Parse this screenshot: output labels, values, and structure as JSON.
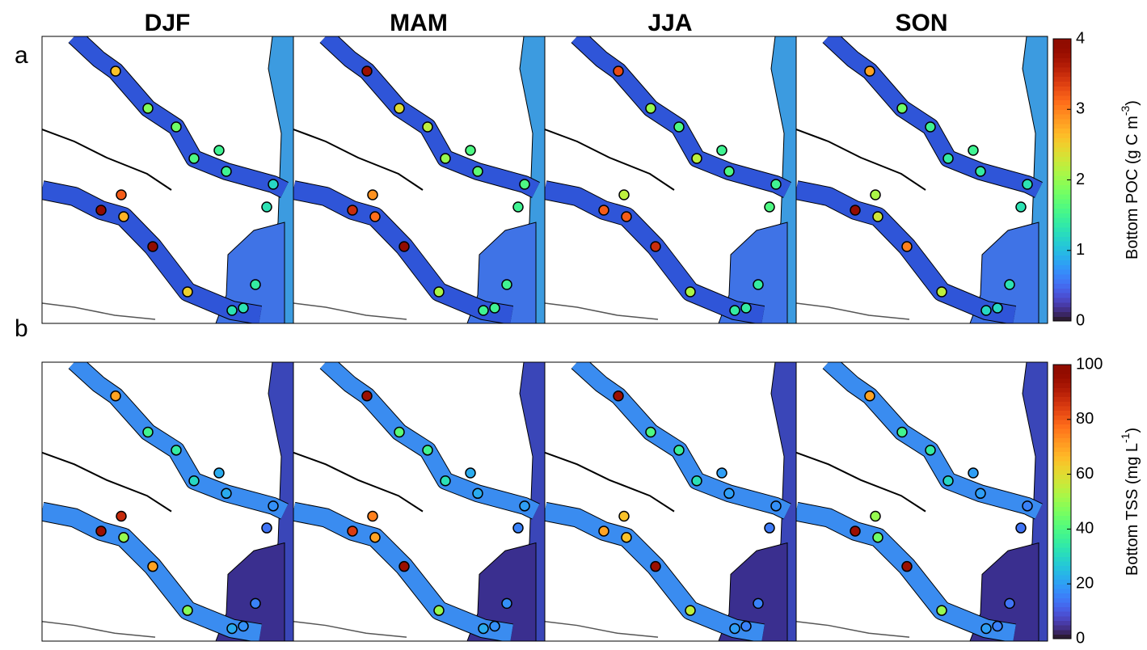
{
  "seasons": [
    "DJF",
    "MAM",
    "JJA",
    "SON"
  ],
  "panels": [
    {
      "label": "a",
      "colorbar": {
        "label": "Bottom POC (g C m",
        "superscript": "-3",
        "suffix": ")",
        "lim": [
          0,
          4
        ],
        "ticks": [
          0,
          1,
          2,
          3,
          4
        ]
      },
      "stations": [
        [
          2.6,
          1.9,
          1.8,
          1.6,
          1.5,
          1.5,
          1.2,
          1.3,
          3.2,
          3.9,
          2.7,
          3.9,
          2.5,
          1.4,
          1.3,
          1.3
        ],
        [
          3.8,
          2.4,
          2.2,
          2.0,
          1.6,
          1.7,
          1.6,
          1.5,
          2.9,
          3.5,
          3.1,
          3.9,
          2.1,
          1.5,
          1.5,
          1.5
        ],
        [
          3.3,
          2.0,
          1.6,
          2.2,
          1.5,
          1.6,
          1.5,
          1.6,
          2.2,
          3.2,
          3.2,
          3.5,
          2.1,
          1.4,
          1.4,
          1.4
        ],
        [
          2.8,
          1.8,
          1.5,
          1.4,
          1.5,
          1.4,
          1.3,
          1.3,
          2.1,
          3.9,
          2.3,
          3.0,
          2.2,
          1.3,
          1.2,
          1.2
        ]
      ]
    },
    {
      "label": "b",
      "colorbar": {
        "label": "Bottom TSS (mg L",
        "superscript": "-1",
        "suffix": ")",
        "lim": [
          0,
          100
        ],
        "ticks": [
          0,
          20,
          40,
          60,
          80,
          100
        ]
      },
      "stations": [
        [
          70,
          38,
          35,
          30,
          22,
          22,
          18,
          14,
          88,
          95,
          50,
          70,
          48,
          16,
          22,
          18
        ],
        [
          95,
          42,
          38,
          32,
          22,
          22,
          20,
          16,
          75,
          85,
          70,
          95,
          50,
          18,
          22,
          18
        ],
        [
          95,
          40,
          36,
          32,
          20,
          20,
          18,
          15,
          65,
          70,
          65,
          95,
          55,
          16,
          20,
          16
        ],
        [
          70,
          38,
          35,
          30,
          20,
          20,
          16,
          14,
          50,
          95,
          45,
          95,
          50,
          14,
          20,
          16
        ]
      ]
    }
  ]
}
